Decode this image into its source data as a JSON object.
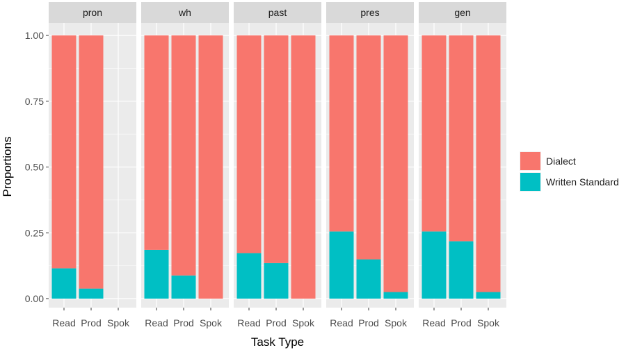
{
  "chart_data": {
    "type": "bar",
    "stacked": true,
    "normalized": true,
    "facets": [
      "pron",
      "wh",
      "past",
      "pres",
      "gen"
    ],
    "categories": [
      "Read",
      "Prod",
      "Spok"
    ],
    "xlabel": "Task Type",
    "ylabel": "Proportions",
    "ylim": [
      0,
      1
    ],
    "yticks": [
      "0.00",
      "0.25",
      "0.50",
      "0.75",
      "1.00"
    ],
    "legend_position": "right",
    "grid": true,
    "series": [
      {
        "name": "Dialect",
        "color": "#F8766D",
        "values": {
          "pron": [
            0.885,
            0.962,
            null
          ],
          "wh": [
            0.815,
            0.912,
            1.0
          ],
          "past": [
            0.827,
            0.865,
            1.0
          ],
          "pres": [
            0.745,
            0.851,
            0.975
          ],
          "gen": [
            0.745,
            0.782,
            0.975
          ]
        }
      },
      {
        "name": "Written Standard",
        "color": "#00BFC4",
        "values": {
          "pron": [
            0.115,
            0.038,
            null
          ],
          "wh": [
            0.185,
            0.088,
            0.0
          ],
          "past": [
            0.173,
            0.135,
            0.0
          ],
          "pres": [
            0.255,
            0.149,
            0.025
          ],
          "gen": [
            0.255,
            0.218,
            0.025
          ]
        }
      }
    ]
  }
}
